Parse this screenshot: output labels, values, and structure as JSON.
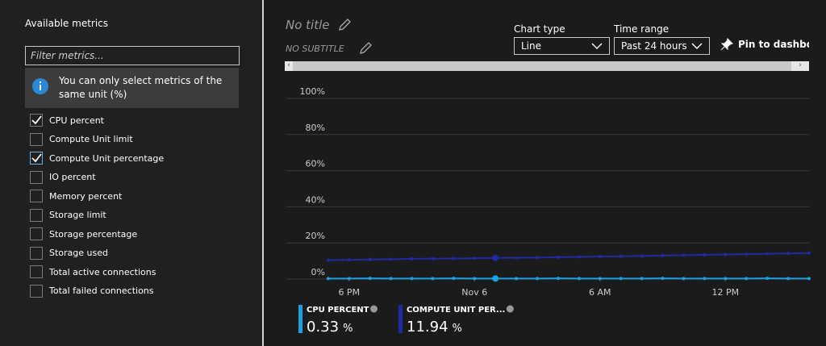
{
  "panel": {
    "title": "Available metrics",
    "filter_placeholder": "Filter metrics...",
    "info": "You can only select metrics of the same unit (%)",
    "metrics": [
      {
        "label": "CPU percent",
        "checked": true
      },
      {
        "label": "Compute Unit limit",
        "checked": false
      },
      {
        "label": "Compute Unit percentage",
        "checked": true
      },
      {
        "label": "IO percent",
        "checked": false
      },
      {
        "label": "Memory percent",
        "checked": false
      },
      {
        "label": "Storage limit",
        "checked": false
      },
      {
        "label": "Storage percentage",
        "checked": false
      },
      {
        "label": "Storage used",
        "checked": false
      },
      {
        "label": "Total active connections",
        "checked": false
      },
      {
        "label": "Total failed connections",
        "checked": false
      }
    ]
  },
  "header": {
    "title": "No title",
    "subtitle": "NO SUBTITLE",
    "chart_type_label": "Chart type",
    "chart_type": "Line",
    "time_range_label": "Time range",
    "time_range": "Past 24 hours",
    "pin": "Pin to dashboard"
  },
  "chart_data": {
    "type": "line",
    "x": [
      2,
      3,
      4,
      5,
      6,
      7,
      8,
      9,
      10,
      11,
      12,
      13,
      14,
      15,
      16,
      17,
      18,
      19,
      20,
      21,
      22,
      23,
      24,
      25
    ],
    "series": [
      {
        "name": "CPU PERCENT",
        "color": "#1ba1e2",
        "values": [
          0.3,
          0.3,
          0.4,
          0.3,
          0.3,
          0.3,
          0.4,
          0.3,
          0.3,
          0.3,
          0.3,
          0.4,
          0.3,
          0.3,
          0.3,
          0.3,
          0.4,
          0.3,
          0.3,
          0.3,
          0.3,
          0.4,
          0.3,
          0.3
        ]
      },
      {
        "name": "COMPUTE UNIT PER...",
        "color": "#1f2aa0",
        "values": [
          10.5,
          10.6,
          10.8,
          11.0,
          11.2,
          11.3,
          11.4,
          11.5,
          11.7,
          11.8,
          11.9,
          12.1,
          12.3,
          12.5,
          12.6,
          12.8,
          13.0,
          13.2,
          13.4,
          13.6,
          13.8,
          14.0,
          14.2,
          14.4
        ]
      }
    ],
    "xlim": [
      0,
      25
    ],
    "xticks": [
      {
        "value": 3,
        "label": "6 PM"
      },
      {
        "value": 9,
        "label": "Nov 6"
      },
      {
        "value": 15,
        "label": "6 AM"
      },
      {
        "value": 21,
        "label": "12 PM"
      }
    ],
    "ylim": [
      0,
      100
    ],
    "yticks": [
      {
        "value": 0,
        "label": "0%"
      },
      {
        "value": 20,
        "label": "20%"
      },
      {
        "value": 40,
        "label": "40%"
      },
      {
        "value": 60,
        "label": "60%"
      },
      {
        "value": 80,
        "label": "80%"
      },
      {
        "value": 100,
        "label": "100%"
      }
    ],
    "grid": true
  },
  "legend": [
    {
      "value": 0.33,
      "unit": "%"
    },
    {
      "value": 11.94,
      "unit": "%"
    }
  ]
}
